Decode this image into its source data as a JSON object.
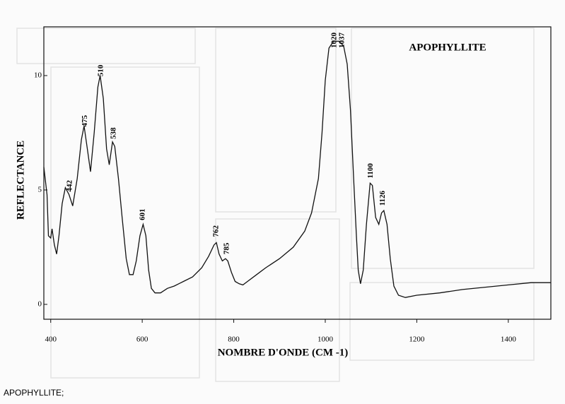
{
  "chart_data": {
    "type": "line",
    "title": "APOPHYLLITE",
    "x_label": "NOMBRE D'ONDE (CM -1)",
    "y_label": "REFLECTANCE",
    "x": [
      385,
      392,
      395,
      400,
      403,
      408,
      413,
      418,
      425,
      432,
      440,
      448,
      458,
      467,
      473,
      480,
      487,
      495,
      503,
      508,
      515,
      522,
      528,
      535,
      540,
      548,
      556,
      565,
      572,
      580,
      587,
      595,
      602,
      608,
      614,
      620,
      628,
      640,
      655,
      670,
      690,
      710,
      730,
      745,
      757,
      762,
      768,
      775,
      782,
      787,
      795,
      803,
      812,
      820,
      830,
      850,
      870,
      900,
      930,
      955,
      970,
      985,
      993,
      1000,
      1008,
      1018,
      1030,
      1040,
      1048,
      1055,
      1062,
      1068,
      1072,
      1077,
      1083,
      1090,
      1098,
      1103,
      1110,
      1117,
      1123,
      1128,
      1135,
      1142,
      1150,
      1160,
      1175,
      1200,
      1250,
      1300,
      1350,
      1400,
      1450,
      1493
    ],
    "values": [
      6.0,
      4.8,
      3.0,
      2.9,
      3.3,
      2.6,
      2.2,
      3.0,
      4.4,
      5.1,
      4.8,
      4.3,
      5.5,
      7.2,
      7.8,
      6.8,
      5.8,
      7.5,
      9.5,
      10.0,
      9.0,
      6.8,
      6.1,
      7.1,
      6.9,
      5.5,
      3.8,
      2.0,
      1.3,
      1.3,
      1.9,
      3.0,
      3.5,
      3.0,
      1.5,
      0.7,
      0.5,
      0.5,
      0.7,
      0.8,
      1.0,
      1.2,
      1.6,
      2.1,
      2.6,
      2.7,
      2.2,
      1.9,
      2.0,
      1.9,
      1.4,
      1.0,
      0.9,
      0.85,
      1.0,
      1.3,
      1.6,
      2.0,
      2.5,
      3.2,
      4.0,
      5.5,
      7.5,
      9.8,
      11.2,
      11.5,
      11.5,
      11.3,
      10.5,
      8.5,
      5.5,
      3.0,
      1.5,
      0.9,
      1.5,
      3.5,
      5.3,
      5.2,
      3.8,
      3.5,
      4.0,
      4.1,
      3.5,
      2.0,
      0.8,
      0.4,
      0.3,
      0.4,
      0.5,
      0.65,
      0.75,
      0.85,
      0.95,
      0.95
    ],
    "color": "#111111",
    "peaks": [
      442,
      475,
      510,
      538,
      601,
      762,
      785,
      1020,
      1037,
      1100,
      1126
    ],
    "xlim": [
      385,
      1493
    ],
    "ylim": [
      -0.65,
      12.13
    ],
    "xticks": [
      400,
      600,
      800,
      1000,
      1200,
      1400
    ],
    "yticks": [
      0,
      5,
      10
    ]
  },
  "caption": "APOPHYLLITE;"
}
